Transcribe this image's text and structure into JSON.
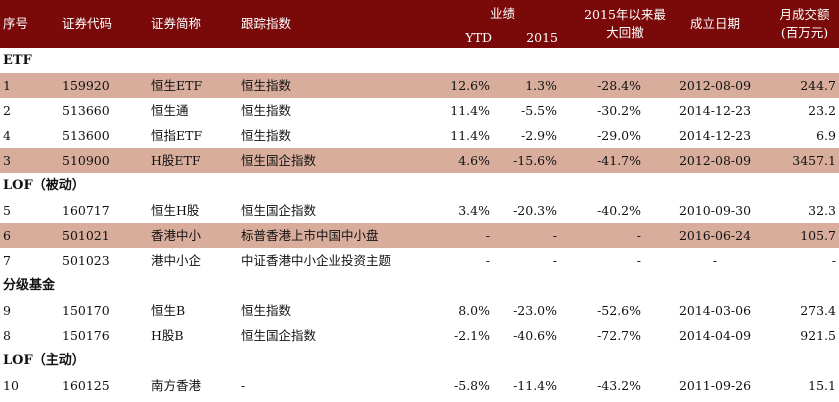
{
  "header": {
    "seq": "序号",
    "code": "证券代码",
    "name": "证券简称",
    "index": "跟踪指数",
    "perf": "业绩",
    "ytd": "YTD",
    "y2015": "2015",
    "drawdown": [
      "2015年以来最",
      "大回撤"
    ],
    "date": "成立日期",
    "volume": [
      "月成交额",
      "(百万元)"
    ]
  },
  "sections": [
    {
      "title": "ETF",
      "rows": [
        {
          "highlight": true,
          "cells": [
            "1",
            "159920",
            "恒生ETF",
            "恒生指数",
            "12.6%",
            "1.3%",
            "-28.4%",
            "2012-08-09",
            "244.7"
          ]
        },
        {
          "highlight": false,
          "cells": [
            "2",
            "513660",
            "恒生通",
            "恒生指数",
            "11.4%",
            "-5.5%",
            "-30.2%",
            "2014-12-23",
            "23.2"
          ]
        },
        {
          "highlight": false,
          "cells": [
            "4",
            "513600",
            "恒指ETF",
            "恒生指数",
            "11.4%",
            "-2.9%",
            "-29.0%",
            "2014-12-23",
            "6.9"
          ]
        },
        {
          "highlight": true,
          "cells": [
            "3",
            "510900",
            "H股ETF",
            "恒生国企指数",
            "4.6%",
            "-15.6%",
            "-41.7%",
            "2012-08-09",
            "3457.1"
          ]
        }
      ]
    },
    {
      "title": "LOF（被动）",
      "rows": [
        {
          "highlight": false,
          "cells": [
            "5",
            "160717",
            "恒生H股",
            "恒生国企指数",
            "3.4%",
            "-20.3%",
            "-40.2%",
            "2010-09-30",
            "32.3"
          ]
        },
        {
          "highlight": true,
          "cells": [
            "6",
            "501021",
            "香港中小",
            "标普香港上市中国中小盘",
            "-",
            "-",
            "-",
            "2016-06-24",
            "105.7"
          ]
        },
        {
          "highlight": false,
          "cells": [
            "7",
            "501023",
            "港中小企",
            "中证香港中小企业投资主题",
            "-",
            "-",
            "-",
            "-",
            "-"
          ]
        }
      ]
    },
    {
      "title": "分级基金",
      "rows": [
        {
          "highlight": false,
          "cells": [
            "9",
            "150170",
            "恒生B",
            "恒生指数",
            "8.0%",
            "-23.0%",
            "-52.6%",
            "2014-03-06",
            "273.4"
          ]
        },
        {
          "highlight": false,
          "cells": [
            "8",
            "150176",
            "H股B",
            "恒生国企指数",
            "-2.1%",
            "-40.6%",
            "-72.7%",
            "2014-04-09",
            "921.5"
          ]
        }
      ]
    },
    {
      "title": "LOF（主动）",
      "rows": [
        {
          "highlight": false,
          "cells": [
            "10",
            "160125",
            "南方香港",
            "-",
            "-5.8%",
            "-11.4%",
            "-43.2%",
            "2011-09-26",
            "15.1"
          ]
        }
      ]
    }
  ]
}
